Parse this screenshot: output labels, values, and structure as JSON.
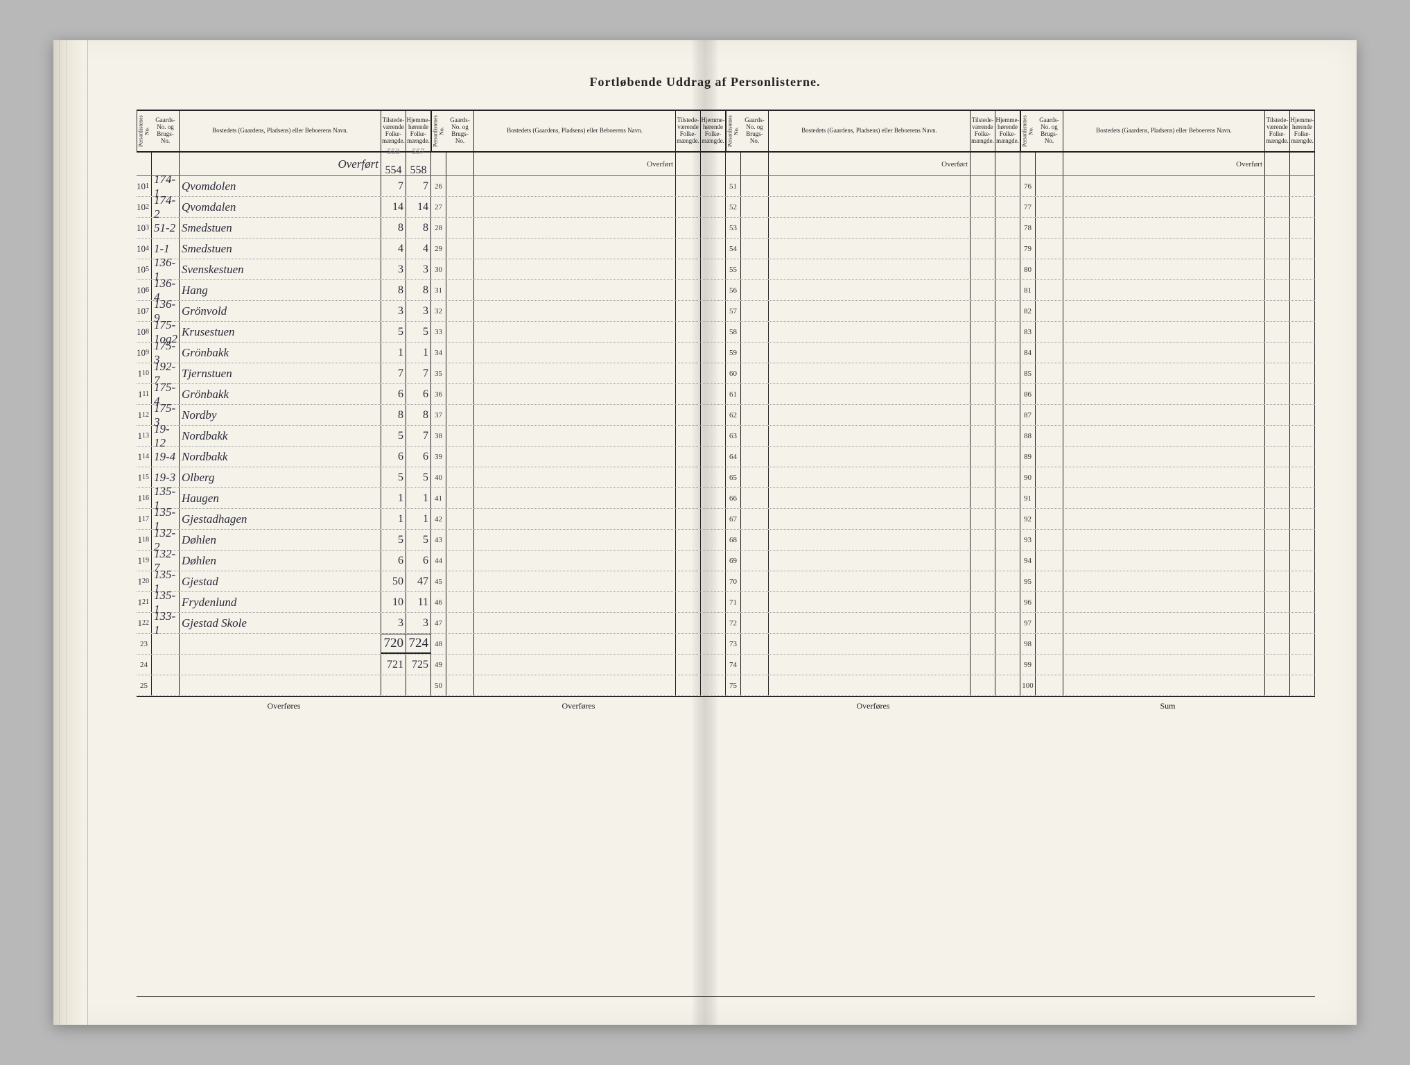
{
  "title": "Fortløbende Uddrag af Personlisterne.",
  "headers": {
    "listno": "Personlistenes No.",
    "gaard": "Gaards-No. og Brugs-No.",
    "name": "Bostedets (Gaardens, Pladsens) eller Beboerens Navn.",
    "tilstede": "Tilstede-værende Folke-mængde.",
    "hjemme": "Hjemme-hørende Folke-mængde."
  },
  "labels": {
    "overfort": "Overført",
    "overfores": "Overføres",
    "sum": "Sum"
  },
  "carried_forward": {
    "til_prev": "553",
    "hjem_prev": "557",
    "til": "554",
    "hjem": "558"
  },
  "totals": {
    "til": "720",
    "hjem": "724",
    "til_adj": "721",
    "hjem_adj": "725"
  },
  "section1_rows": [
    {
      "pre": "10",
      "n": "1",
      "g": "174-1",
      "name": "Qvomdolen",
      "t": "7",
      "h": "7"
    },
    {
      "pre": "10",
      "n": "2",
      "g": "174-2",
      "name": "Qvomdalen",
      "t": "14",
      "h": "14"
    },
    {
      "pre": "10",
      "n": "3",
      "g": "51-2",
      "name": "Smedstuen",
      "t": "8",
      "h": "8"
    },
    {
      "pre": "10",
      "n": "4",
      "g": "1-1",
      "name": "Smedstuen",
      "t": "4",
      "h": "4"
    },
    {
      "pre": "10",
      "n": "5",
      "g": "136-1",
      "name": "Svenskestuen",
      "t": "3",
      "h": "3"
    },
    {
      "pre": "10",
      "n": "6",
      "g": "136-4",
      "name": "Hang",
      "t": "8",
      "h": "8"
    },
    {
      "pre": "10",
      "n": "7",
      "g": "136-9",
      "name": "Grönvold",
      "t": "3",
      "h": "3"
    },
    {
      "pre": "10",
      "n": "8",
      "g": "175-1og2",
      "name": "Krusestuen",
      "t": "5",
      "h": "5"
    },
    {
      "pre": "10",
      "n": "9",
      "g": "175-3",
      "name": "Grönbakk",
      "t": "1",
      "h": "1"
    },
    {
      "pre": "1",
      "n": "10",
      "g": "192-7",
      "name": "Tjernstuen",
      "t": "7",
      "h": "7"
    },
    {
      "pre": "1",
      "n": "11",
      "g": "175-4",
      "name": "Grönbakk",
      "t": "6",
      "h": "6"
    },
    {
      "pre": "1",
      "n": "12",
      "g": "175-3",
      "name": "Nordby",
      "t": "8",
      "h": "8"
    },
    {
      "pre": "1",
      "n": "13",
      "g": "19-12",
      "name": "Nordbakk",
      "t": "5",
      "h": "7"
    },
    {
      "pre": "1",
      "n": "14",
      "g": "19-4",
      "name": "Nordbakk",
      "t": "6",
      "h": "6"
    },
    {
      "pre": "1",
      "n": "15",
      "g": "19-3",
      "name": "Olberg",
      "t": "5",
      "h": "5"
    },
    {
      "pre": "1",
      "n": "16",
      "g": "135-1",
      "name": "Haugen",
      "t": "1",
      "h": "1"
    },
    {
      "pre": "1",
      "n": "17",
      "g": "135-1",
      "name": "Gjestadhagen",
      "t": "1",
      "h": "1"
    },
    {
      "pre": "1",
      "n": "18",
      "g": "132-2",
      "name": "Døhlen",
      "t": "5",
      "h": "5"
    },
    {
      "pre": "1",
      "n": "19",
      "g": "132-7",
      "name": "Døhlen",
      "t": "6",
      "h": "6"
    },
    {
      "pre": "1",
      "n": "20",
      "g": "135-1",
      "name": "Gjestad",
      "t": "50",
      "h": "47"
    },
    {
      "pre": "1",
      "n": "21",
      "g": "135-1",
      "name": "Frydenlund",
      "t": "10",
      "h": "11"
    },
    {
      "pre": "1",
      "n": "22",
      "g": "133-1",
      "name": "Gjestad Skole",
      "t": "3",
      "h": "3"
    }
  ],
  "section1_blank": [
    "23",
    "24",
    "25"
  ],
  "section2_numbers": [
    "26",
    "27",
    "28",
    "29",
    "30",
    "31",
    "32",
    "33",
    "34",
    "35",
    "36",
    "37",
    "38",
    "39",
    "40",
    "41",
    "42",
    "43",
    "44",
    "45",
    "46",
    "47",
    "48",
    "49",
    "50"
  ],
  "section3_numbers": [
    "51",
    "52",
    "53",
    "54",
    "55",
    "56",
    "57",
    "58",
    "59",
    "60",
    "61",
    "62",
    "63",
    "64",
    "65",
    "66",
    "67",
    "68",
    "69",
    "70",
    "71",
    "72",
    "73",
    "74",
    "75"
  ],
  "section4_numbers": [
    "76",
    "77",
    "78",
    "79",
    "80",
    "81",
    "82",
    "83",
    "84",
    "85",
    "86",
    "87",
    "88",
    "89",
    "90",
    "91",
    "92",
    "93",
    "94",
    "95",
    "96",
    "97",
    "98",
    "99",
    "100"
  ]
}
